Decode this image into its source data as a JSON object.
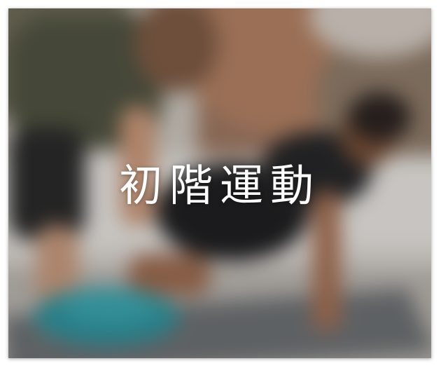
{
  "card": {
    "title": "初階運動",
    "background_image": "blurred-photo-fitness-trainer-assisting-woman-exercise",
    "colors": {
      "title_text": "#ffffff",
      "card_shadow": "rgba(0,0,0,0.35)"
    }
  }
}
